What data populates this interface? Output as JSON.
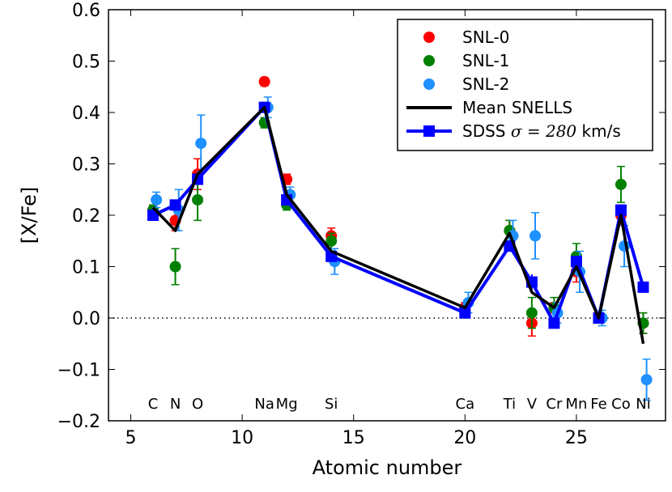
{
  "chart_data": {
    "type": "scatter",
    "title": "",
    "xlabel": "Atomic number",
    "ylabel": "[X/Fe]",
    "xlim": [
      4,
      29
    ],
    "ylim": [
      -0.2,
      0.6
    ],
    "xticks": [
      5,
      10,
      15,
      20,
      25
    ],
    "yticks": [
      0.6,
      0.5,
      0.4,
      0.3,
      0.2,
      0.1,
      0.0,
      -0.1,
      -0.2
    ],
    "ytick_labels": [
      "0.6",
      "0.5",
      "0.4",
      "0.3",
      "0.2",
      "0.1",
      "0.0",
      "−0.1",
      "−0.2"
    ],
    "reference_line": {
      "y": 0.0,
      "style": "dotted"
    },
    "element_labels": [
      {
        "z": 6,
        "label": "C"
      },
      {
        "z": 7,
        "label": "N"
      },
      {
        "z": 8,
        "label": "O"
      },
      {
        "z": 11,
        "label": "Na"
      },
      {
        "z": 12,
        "label": "Mg"
      },
      {
        "z": 14,
        "label": "Si"
      },
      {
        "z": 20,
        "label": "Ca"
      },
      {
        "z": 22,
        "label": "Ti"
      },
      {
        "z": 23,
        "label": "V"
      },
      {
        "z": 24,
        "label": "Cr"
      },
      {
        "z": 25,
        "label": "Mn"
      },
      {
        "z": 26,
        "label": "Fe"
      },
      {
        "z": 27,
        "label": "Co"
      },
      {
        "z": 28,
        "label": "Ni"
      }
    ],
    "series": [
      {
        "name": "SNL-0",
        "kind": "points",
        "color": "#ff0000",
        "x": [
          6,
          7,
          8,
          11,
          12,
          14,
          20,
          22,
          23,
          24,
          25,
          26,
          27,
          28
        ],
        "y": [
          0.21,
          0.19,
          0.28,
          0.46,
          0.27,
          0.16,
          0.02,
          0.17,
          -0.01,
          0.02,
          0.09,
          0.0,
          0.2,
          -0.01
        ],
        "err": [
          0.01,
          0.02,
          0.03,
          0.008,
          0.01,
          0.015,
          0.01,
          0.02,
          0.025,
          0.01,
          0.02,
          0.01,
          0.02,
          0.02
        ]
      },
      {
        "name": "SNL-1",
        "kind": "points",
        "color": "#008000",
        "x": [
          6,
          7,
          8,
          11,
          12,
          14,
          20,
          22,
          23,
          24,
          25,
          26,
          27,
          28
        ],
        "y": [
          0.21,
          0.1,
          0.23,
          0.38,
          0.22,
          0.15,
          0.01,
          0.17,
          0.01,
          0.02,
          0.12,
          0.0,
          0.26,
          -0.01
        ],
        "err": [
          0.01,
          0.035,
          0.04,
          0.01,
          0.01,
          0.015,
          0.01,
          0.02,
          0.03,
          0.02,
          0.025,
          0.01,
          0.035,
          0.02
        ]
      },
      {
        "name": "SNL-2",
        "kind": "points",
        "color": "#1e90ff",
        "x": [
          6,
          7,
          8,
          11,
          12,
          14,
          20,
          22,
          23,
          24,
          25,
          26,
          27,
          28
        ],
        "y": [
          0.23,
          0.21,
          0.34,
          0.41,
          0.24,
          0.11,
          0.03,
          0.16,
          0.16,
          0.01,
          0.09,
          0.0,
          0.14,
          -0.12
        ],
        "err": [
          0.015,
          0.04,
          0.055,
          0.02,
          0.015,
          0.025,
          0.02,
          0.03,
          0.045,
          0.02,
          0.04,
          0.015,
          0.04,
          0.04
        ]
      },
      {
        "name": "Mean SNELLS",
        "kind": "line",
        "color": "#000000",
        "x": [
          6,
          7,
          8,
          11,
          12,
          14,
          20,
          22,
          23,
          24,
          25,
          26,
          27,
          28
        ],
        "y": [
          0.215,
          0.17,
          0.28,
          0.41,
          0.24,
          0.13,
          0.02,
          0.165,
          0.05,
          0.02,
          0.1,
          0.0,
          0.2,
          -0.05
        ]
      },
      {
        "name": "SDSS σ = 280 km/s",
        "kind": "line+markers",
        "color": "#0000ff",
        "x": [
          6,
          7,
          8,
          11,
          12,
          14,
          20,
          22,
          23,
          24,
          25,
          26,
          27,
          28
        ],
        "y": [
          0.2,
          0.22,
          0.27,
          0.41,
          0.23,
          0.12,
          0.01,
          0.14,
          0.07,
          -0.01,
          0.11,
          0.0,
          0.21,
          0.06
        ],
        "err": [
          0.01,
          0.01,
          0.01,
          0.01,
          0.01,
          0.01,
          0.01,
          0.01,
          0.015,
          0.01,
          0.01,
          0.01,
          0.01,
          0.01
        ]
      }
    ],
    "legend": {
      "position": "top-right",
      "entries": [
        {
          "label": "SNL-0",
          "color": "#ff0000",
          "marker": "circle"
        },
        {
          "label": "SNL-1",
          "color": "#008000",
          "marker": "circle"
        },
        {
          "label": "SNL-2",
          "color": "#1e90ff",
          "marker": "circle"
        },
        {
          "label": "Mean SNELLS",
          "color": "#000000",
          "marker": "line"
        },
        {
          "label_prefix": "SDSS ",
          "label_math": "σ = 280",
          "label_suffix": " km/s",
          "color": "#0000ff",
          "marker": "line-square"
        }
      ]
    }
  }
}
